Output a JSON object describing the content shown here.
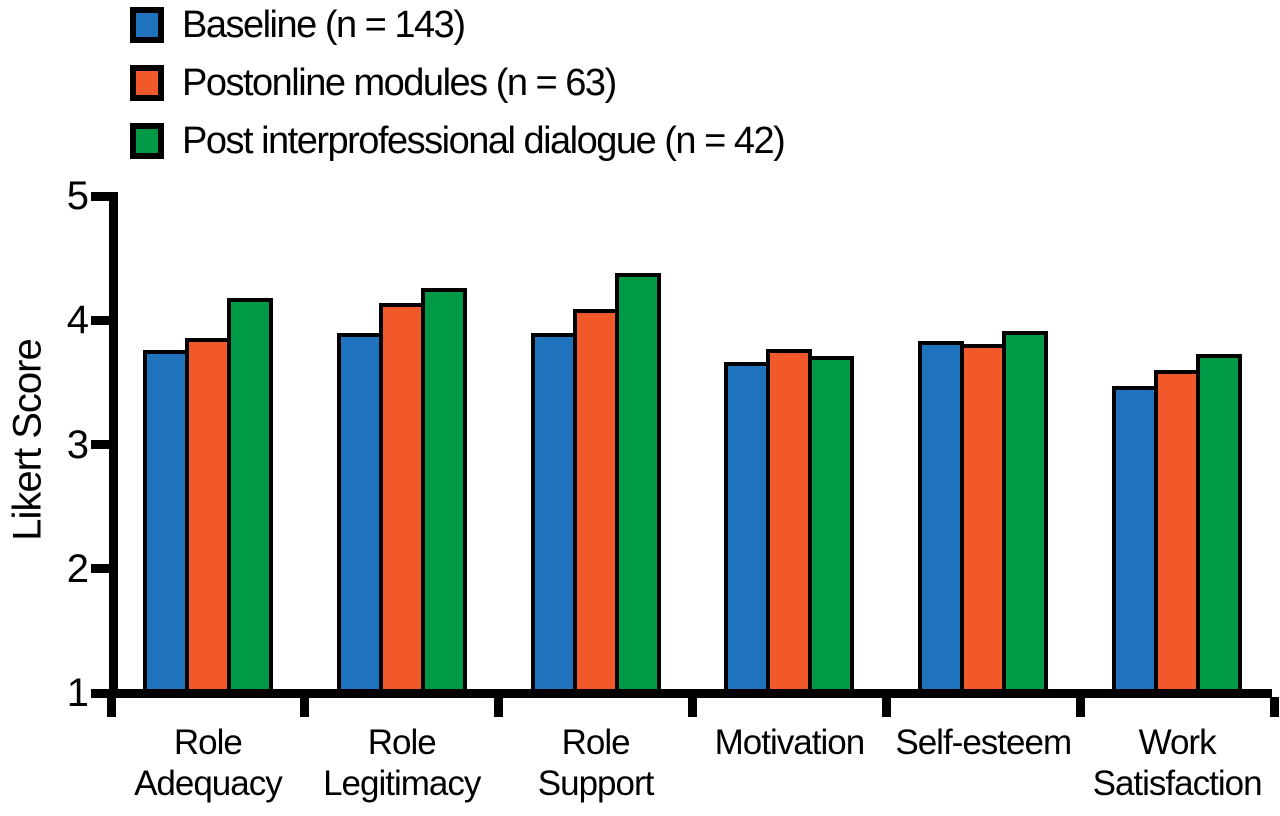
{
  "chart_data": {
    "type": "bar",
    "title": "",
    "ylabel": "Likert Score",
    "ylim": [
      1,
      5
    ],
    "yticks": [
      1,
      2,
      3,
      4,
      5
    ],
    "grid": false,
    "legend_position": "top-left",
    "categories": [
      "Role Adequacy",
      "Role Legitimacy",
      "Role Support",
      "Motivation",
      "Self-esteem",
      "Work Satisfaction"
    ],
    "category_label_lines": [
      [
        "Role",
        "Adequacy"
      ],
      [
        "Role",
        "Legitimacy"
      ],
      [
        "Role",
        "Support"
      ],
      [
        "Motivation"
      ],
      [
        "Self-esteem"
      ],
      [
        "Work",
        "Satisfaction"
      ]
    ],
    "series": [
      {
        "name": "Baseline (n = 143)",
        "color": "#1F73BD",
        "values": [
          3.76,
          3.9,
          3.9,
          3.66,
          3.83,
          3.47
        ]
      },
      {
        "name": "Postonline modules (n = 63)",
        "color": "#F1592A",
        "values": [
          3.86,
          4.14,
          4.09,
          3.77,
          3.81,
          3.6
        ]
      },
      {
        "name": "Post interprofessional dialogue (n = 42)",
        "color": "#009A47",
        "values": [
          4.18,
          4.26,
          4.38,
          3.71,
          3.91,
          3.73
        ]
      }
    ],
    "bar_outline_color": "#000000",
    "axis_color": "#000000"
  }
}
